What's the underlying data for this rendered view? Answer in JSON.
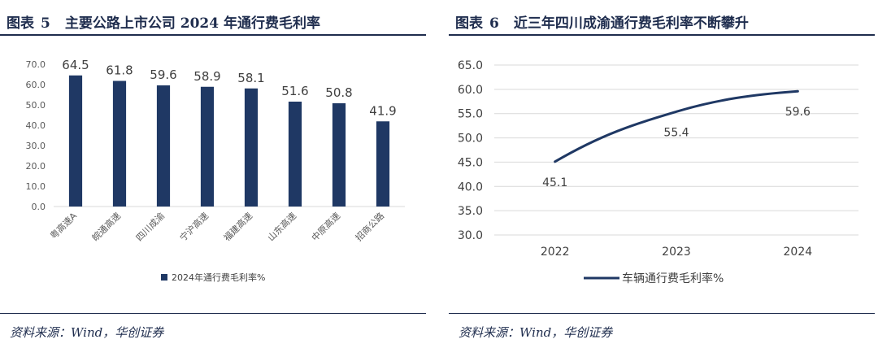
{
  "left": {
    "fig_label": "图表",
    "fig_num": "5",
    "title": "主要公路上市公司 2024 年通行费毛利率",
    "source": "资料来源：Wind，华创证券"
  },
  "right": {
    "fig_label": "图表",
    "fig_num": "6",
    "title": "近三年四川成渝通行费毛利率不断攀升",
    "source": "资料来源：Wind，华创证券"
  },
  "chart_data": [
    {
      "type": "bar",
      "categories": [
        "粤高速A",
        "皖通高速",
        "四川成渝",
        "宁沪高速",
        "福建高速",
        "山东高速",
        "中原高速",
        "招商公路"
      ],
      "series": [
        {
          "name": "2024年通行费毛利率%",
          "values": [
            64.5,
            61.8,
            59.6,
            58.9,
            58.1,
            51.6,
            50.8,
            41.9
          ]
        }
      ],
      "ylim": [
        0,
        70
      ],
      "yticks": [
        0,
        10,
        20,
        30,
        40,
        50,
        60,
        70
      ],
      "tick_format": "0.0",
      "legend": "bottom",
      "grid": false,
      "bar_color": "#1f3864"
    },
    {
      "type": "line",
      "x": [
        "2022",
        "2023",
        "2024"
      ],
      "series": [
        {
          "name": "车辆通行费毛利率%",
          "values": [
            45.1,
            55.4,
            59.6
          ]
        }
      ],
      "ylim": [
        30,
        65
      ],
      "yticks": [
        30,
        35,
        40,
        45,
        50,
        55,
        60,
        65
      ],
      "tick_format": "0.0",
      "legend": "bottom",
      "grid": true,
      "line_color": "#1f3864"
    }
  ]
}
